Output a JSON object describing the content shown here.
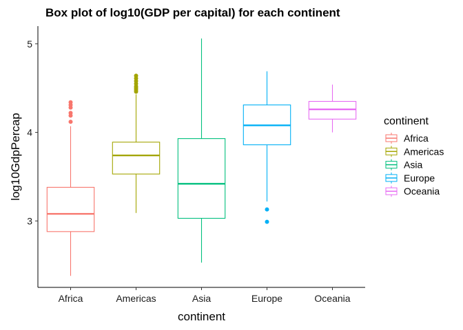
{
  "chart_data": {
    "type": "box",
    "title": "Box plot of log10(GDP per capital) for each continent",
    "xlabel": "continent",
    "ylabel": "log10GdpPercap",
    "ylim": [
      2.25,
      5.2
    ],
    "yticks": [
      3,
      4,
      5
    ],
    "ytick_labels": [
      "3",
      "4",
      "5"
    ],
    "grid": false,
    "legend": {
      "title": "continent",
      "position": "right"
    },
    "categories": [
      "Africa",
      "Americas",
      "Asia",
      "Europe",
      "Oceania"
    ],
    "series": [
      {
        "name": "Africa",
        "color": "#F8766D",
        "whisker_low": 2.38,
        "q1": 2.88,
        "median": 3.08,
        "q3": 3.38,
        "whisker_high": 4.07,
        "outliers": [
          4.12,
          4.19,
          4.22,
          4.28,
          4.31,
          4.34
        ]
      },
      {
        "name": "Americas",
        "color": "#A3A500",
        "whisker_low": 3.09,
        "q1": 3.53,
        "median": 3.74,
        "q3": 3.89,
        "whisker_high": 4.43,
        "outliers": [
          4.46,
          4.48,
          4.5,
          4.52,
          4.55,
          4.58,
          4.61,
          4.64
        ]
      },
      {
        "name": "Asia",
        "color": "#00BF7D",
        "whisker_low": 2.53,
        "q1": 3.03,
        "median": 3.42,
        "q3": 3.93,
        "whisker_high": 5.06,
        "outliers": []
      },
      {
        "name": "Europe",
        "color": "#00B0F6",
        "whisker_low": 3.22,
        "q1": 3.86,
        "median": 4.08,
        "q3": 4.31,
        "whisker_high": 4.69,
        "outliers": [
          3.13,
          2.99
        ]
      },
      {
        "name": "Oceania",
        "color": "#E76BF3",
        "whisker_low": 4.0,
        "q1": 4.15,
        "median": 4.26,
        "q3": 4.35,
        "whisker_high": 4.54,
        "outliers": []
      }
    ]
  }
}
